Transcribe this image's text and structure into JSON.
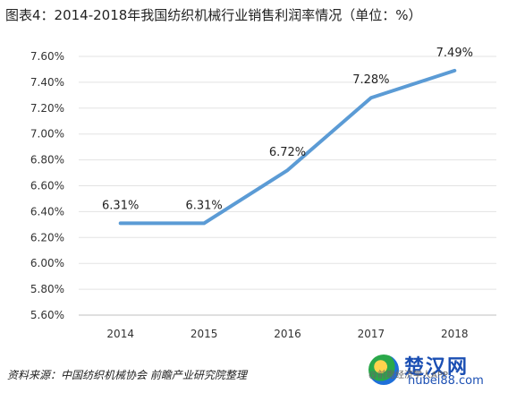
{
  "header": {
    "title": "图表4：2014-2018年我国纺织机械行业销售利润率情况（单位：%）"
  },
  "chart_data": {
    "type": "line",
    "categories": [
      "2014",
      "2015",
      "2016",
      "2017",
      "2018"
    ],
    "values": [
      6.31,
      6.31,
      6.72,
      7.28,
      7.49
    ],
    "data_labels": [
      "6.31%",
      "6.31%",
      "6.72%",
      "7.28%",
      "7.49%"
    ],
    "ylim": [
      5.6,
      7.6
    ],
    "yticks": [
      "5.60%",
      "5.80%",
      "6.00%",
      "6.20%",
      "6.40%",
      "6.60%",
      "6.80%",
      "7.00%",
      "7.20%",
      "7.40%",
      "7.60%"
    ],
    "ytick_values": [
      5.6,
      5.8,
      6.0,
      6.2,
      6.4,
      6.6,
      6.8,
      7.0,
      7.2,
      7.4,
      7.6
    ],
    "grid": true,
    "line_color": "#5b9bd5"
  },
  "footer": {
    "source": "资料来源：中国纺织机械协会 前瞻产业研究院整理"
  },
  "watermark": {
    "brand": "楚汉网",
    "site": "hubei88.com",
    "tag": "@前瞻经济学人APP"
  }
}
